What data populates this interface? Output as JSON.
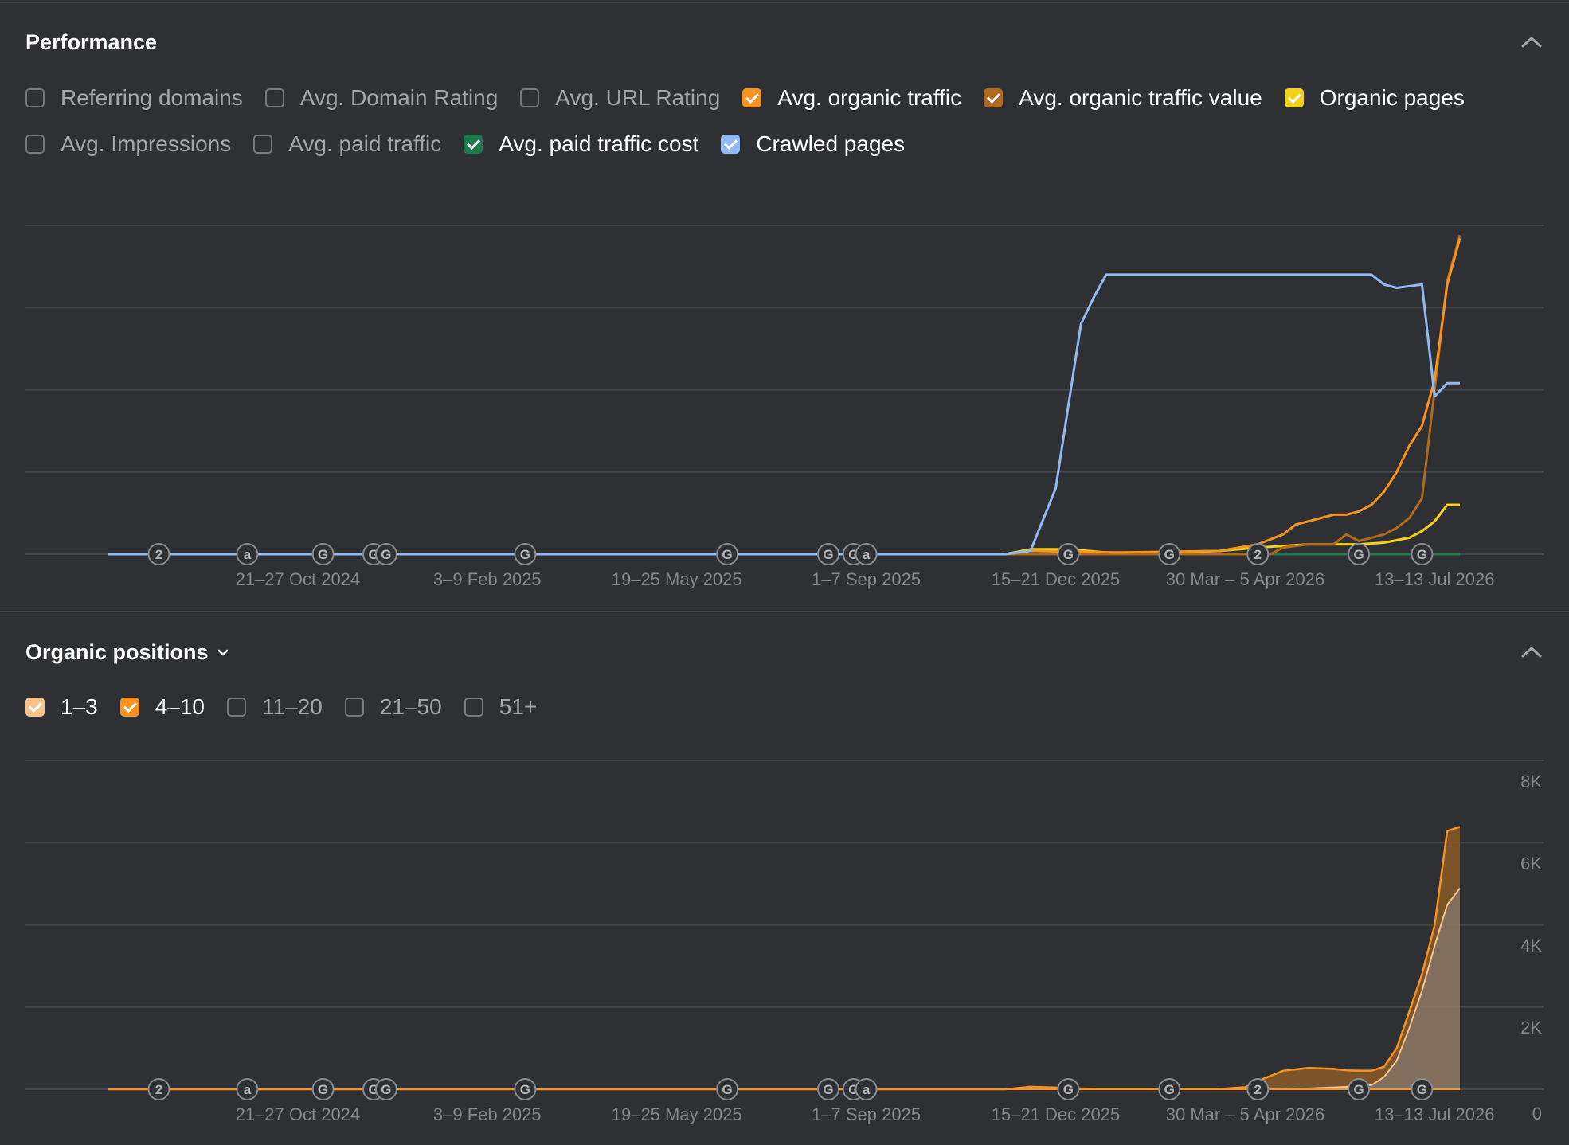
{
  "performance": {
    "title": "Performance",
    "toggles": [
      {
        "label": "Referring domains",
        "checked": false,
        "color": null
      },
      {
        "label": "Avg. Domain Rating",
        "checked": false,
        "color": null
      },
      {
        "label": "Avg. URL Rating",
        "checked": false,
        "color": null
      },
      {
        "label": "Avg. organic traffic",
        "checked": true,
        "color": "#f7931e"
      },
      {
        "label": "Avg. organic traffic value",
        "checked": true,
        "color": "#b06a1c"
      },
      {
        "label": "Organic pages",
        "checked": true,
        "color": "#f7d117"
      },
      {
        "label": "Avg. Impressions",
        "checked": false,
        "color": null
      },
      {
        "label": "Avg. paid traffic",
        "checked": false,
        "color": null
      },
      {
        "label": "Avg. paid traffic cost",
        "checked": true,
        "color": "#1e7a4a"
      },
      {
        "label": "Crawled pages",
        "checked": true,
        "color": "#8fbaf5"
      }
    ]
  },
  "organic_positions": {
    "title": "Organic positions",
    "toggles": [
      {
        "label": "1–3",
        "checked": true,
        "color": "#f7c48a"
      },
      {
        "label": "4–10",
        "checked": true,
        "color": "#f7931e"
      },
      {
        "label": "11–20",
        "checked": false,
        "color": null
      },
      {
        "label": "21–50",
        "checked": false,
        "color": null
      },
      {
        "label": "51+",
        "checked": false,
        "color": null
      }
    ]
  },
  "chart_data": [
    {
      "type": "line",
      "x_ticks": [
        "21–27 Oct 2024",
        "3–9 Feb 2025",
        "19–25 May 2025",
        "1–7 Sep 2025",
        "15–21 Dec 2025",
        "30 Mar – 5 Apr 2026",
        "13–13 Jul 2026"
      ],
      "y_axis_labels_shown": false,
      "grid": true,
      "series": [
        {
          "name": "Crawled pages",
          "color": "#8fbaf5",
          "values": [
            [
              0,
              0
            ],
            [
              71,
              0
            ],
            [
              73,
              0.01
            ],
            [
              75,
              0.2
            ],
            [
              76,
              0.45
            ],
            [
              77,
              0.7
            ],
            [
              78,
              0.78
            ],
            [
              79,
              0.85
            ],
            [
              100,
              0.85
            ],
            [
              101,
              0.82
            ],
            [
              102,
              0.81
            ],
            [
              104,
              0.82
            ],
            [
              105,
              0.48
            ],
            [
              106,
              0.52
            ],
            [
              107,
              0.52
            ]
          ]
        },
        {
          "name": "Avg. organic traffic",
          "color": "#f7931e",
          "values": [
            [
              0,
              0
            ],
            [
              71,
              0
            ],
            [
              73,
              0.01
            ],
            [
              80,
              0.005
            ],
            [
              88,
              0.01
            ],
            [
              91,
              0.03
            ],
            [
              93,
              0.06
            ],
            [
              94,
              0.09
            ],
            [
              96,
              0.11
            ],
            [
              97,
              0.12
            ],
            [
              98,
              0.12
            ],
            [
              99,
              0.13
            ],
            [
              100,
              0.15
            ],
            [
              101,
              0.19
            ],
            [
              102,
              0.25
            ],
            [
              103,
              0.33
            ],
            [
              104,
              0.39
            ],
            [
              105,
              0.53
            ],
            [
              106,
              0.82
            ],
            [
              107,
              0.96
            ]
          ]
        },
        {
          "name": "Avg. organic traffic value",
          "color": "#b06a1c",
          "values": [
            [
              0,
              0
            ],
            [
              92,
              0
            ],
            [
              93,
              0.02
            ],
            [
              95,
              0.03
            ],
            [
              97,
              0.03
            ],
            [
              98,
              0.06
            ],
            [
              99,
              0.04
            ],
            [
              100,
              0.05
            ],
            [
              101,
              0.06
            ],
            [
              102,
              0.08
            ],
            [
              103,
              0.11
            ],
            [
              104,
              0.17
            ],
            [
              105,
              0.5
            ],
            [
              106,
              0.83
            ],
            [
              107,
              0.97
            ]
          ]
        },
        {
          "name": "Organic pages",
          "color": "#f7d117",
          "values": [
            [
              0,
              0
            ],
            [
              71,
              0
            ],
            [
              73,
              0.015
            ],
            [
              76,
              0.015
            ],
            [
              79,
              0.005
            ],
            [
              85,
              0.005
            ],
            [
              88,
              0.01
            ],
            [
              91,
              0.02
            ],
            [
              95,
              0.03
            ],
            [
              99,
              0.03
            ],
            [
              101,
              0.035
            ],
            [
              103,
              0.05
            ],
            [
              104,
              0.07
            ],
            [
              105,
              0.1
            ],
            [
              106,
              0.15
            ],
            [
              107,
              0.15
            ]
          ]
        },
        {
          "name": "Avg. paid traffic cost",
          "color": "#1e7a4a",
          "values": [
            [
              0,
              0
            ],
            [
              107,
              0
            ]
          ]
        }
      ],
      "annotations": [
        {
          "x": 4,
          "label": "2"
        },
        {
          "x": 11,
          "label": "a"
        },
        {
          "x": 17,
          "label": "G"
        },
        {
          "x": 21,
          "label": "G"
        },
        {
          "x": 22,
          "label": "G"
        },
        {
          "x": 33,
          "label": "G"
        },
        {
          "x": 49,
          "label": "G"
        },
        {
          "x": 57,
          "label": "G"
        },
        {
          "x": 59,
          "label": "G"
        },
        {
          "x": 60,
          "label": "a"
        },
        {
          "x": 76,
          "label": "G"
        },
        {
          "x": 84,
          "label": "G"
        },
        {
          "x": 91,
          "label": "2"
        },
        {
          "x": 99,
          "label": "G"
        },
        {
          "x": 104,
          "label": "G"
        }
      ]
    },
    {
      "type": "area",
      "x_ticks": [
        "21–27 Oct 2024",
        "3–9 Feb 2025",
        "19–25 May 2025",
        "1–7 Sep 2025",
        "15–21 Dec 2025",
        "30 Mar – 5 Apr 2026",
        "13–13 Jul 2026"
      ],
      "y_ticks": [
        "0",
        "2K",
        "4K",
        "6K",
        "8K"
      ],
      "ylim": [
        0,
        8000
      ],
      "grid": true,
      "stacked": true,
      "series": [
        {
          "name": "1–3",
          "color": "#f7c48a",
          "values": [
            [
              0,
              0
            ],
            [
              93,
              0
            ],
            [
              95,
              20
            ],
            [
              98,
              60
            ],
            [
              100,
              100
            ],
            [
              101,
              300
            ],
            [
              102,
              700
            ],
            [
              103,
              1500
            ],
            [
              104,
              2400
            ],
            [
              105,
              3500
            ],
            [
              106,
              4500
            ],
            [
              107,
              4900
            ]
          ]
        },
        {
          "name": "4–10",
          "color": "#f7931e",
          "values": [
            [
              0,
              0
            ],
            [
              71,
              0
            ],
            [
              73,
              60
            ],
            [
              75,
              40
            ],
            [
              78,
              10
            ],
            [
              88,
              10
            ],
            [
              90,
              50
            ],
            [
              91,
              200
            ],
            [
              93,
              450
            ],
            [
              95,
              500
            ],
            [
              97,
              450
            ],
            [
              98,
              400
            ],
            [
              100,
              350
            ],
            [
              101,
              250
            ],
            [
              102,
              300
            ],
            [
              103,
              400
            ],
            [
              104,
              400
            ],
            [
              105,
              500
            ],
            [
              106,
              1800
            ],
            [
              107,
              1500
            ]
          ]
        }
      ],
      "annotations": [
        {
          "x": 4,
          "label": "2"
        },
        {
          "x": 11,
          "label": "a"
        },
        {
          "x": 17,
          "label": "G"
        },
        {
          "x": 21,
          "label": "G"
        },
        {
          "x": 22,
          "label": "G"
        },
        {
          "x": 33,
          "label": "G"
        },
        {
          "x": 49,
          "label": "G"
        },
        {
          "x": 57,
          "label": "G"
        },
        {
          "x": 59,
          "label": "G"
        },
        {
          "x": 60,
          "label": "a"
        },
        {
          "x": 76,
          "label": "G"
        },
        {
          "x": 84,
          "label": "G"
        },
        {
          "x": 91,
          "label": "2"
        },
        {
          "x": 99,
          "label": "G"
        },
        {
          "x": 104,
          "label": "G"
        }
      ]
    }
  ]
}
